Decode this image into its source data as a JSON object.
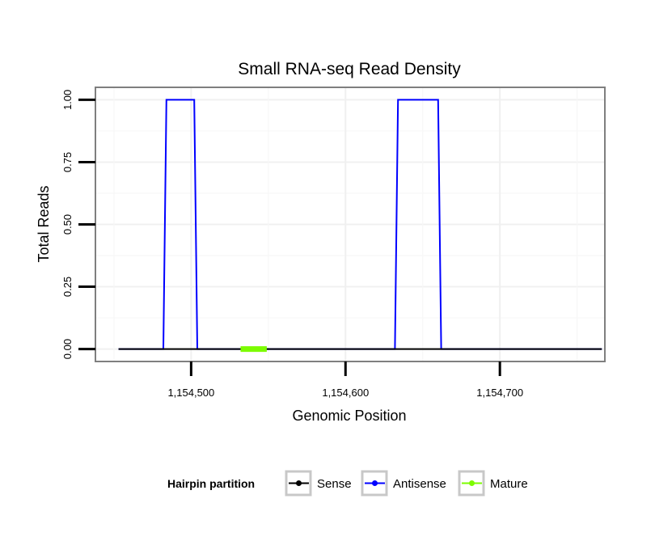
{
  "chart_data": {
    "type": "line",
    "title": "Small RNA-seq Read Density",
    "xlabel": "Genomic Position",
    "ylabel": "Total Reads",
    "xlim": [
      1154438,
      1154768
    ],
    "ylim": [
      -0.05,
      1.05
    ],
    "x_ticks": [
      1154500,
      1154600,
      1154700
    ],
    "x_tick_labels": [
      "1,154,500",
      "1,154,600",
      "1,154,700"
    ],
    "y_ticks": [
      0,
      0.25,
      0.5,
      0.75,
      1.0
    ],
    "y_tick_labels": [
      "0.00",
      "0.25",
      "0.50",
      "0.75",
      "1.00"
    ],
    "grid": true,
    "legend": {
      "title": "Hairpin partition",
      "placement": "bottom"
    },
    "series": [
      {
        "name": "Sense",
        "color": "#000000",
        "x": [
          1154453,
          1154766
        ],
        "y": [
          0,
          0
        ]
      },
      {
        "name": "Antisense",
        "color": "#0000ff",
        "x": [
          1154453,
          1154482,
          1154484,
          1154502,
          1154504,
          1154632,
          1154634,
          1154660,
          1154662,
          1154766
        ],
        "y": [
          0,
          0,
          1,
          1,
          0,
          0,
          1,
          1,
          0,
          0
        ]
      },
      {
        "name": "Mature",
        "color": "#7cfc00",
        "x": [
          1154532,
          1154549
        ],
        "y": [
          0,
          0
        ]
      }
    ]
  }
}
